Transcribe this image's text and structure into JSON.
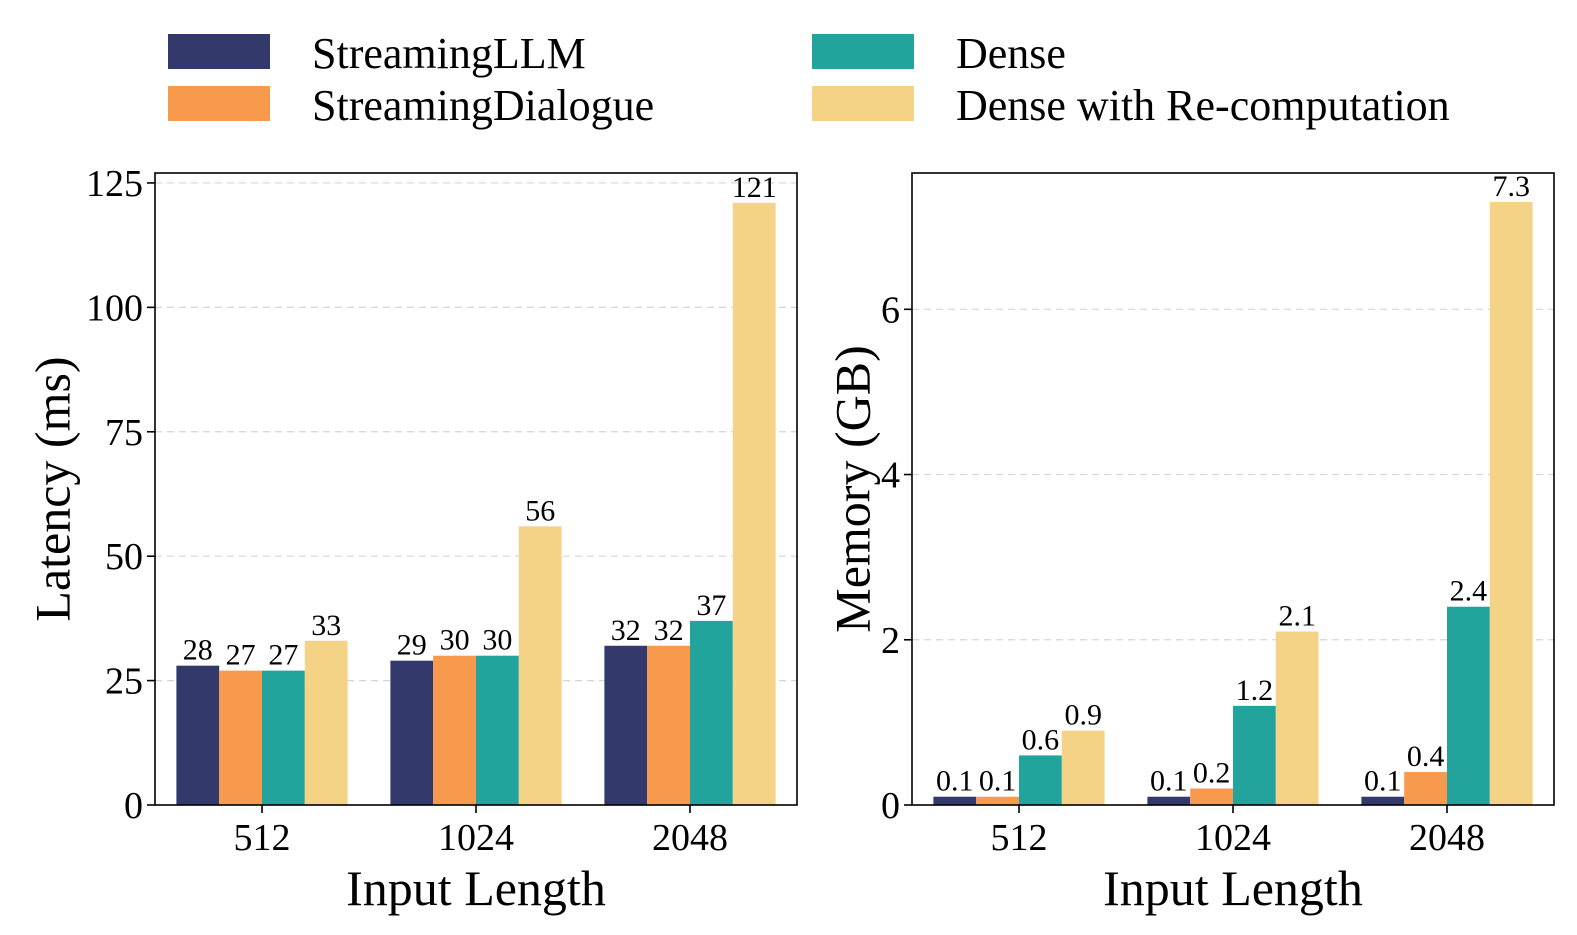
{
  "legend": [
    {
      "label": "StreamingLLM",
      "color": "#333a6b"
    },
    {
      "label": "StreamingDialogue",
      "color": "#f79a4d"
    },
    {
      "label": "Dense",
      "color": "#22a39b"
    },
    {
      "label": "Dense with Re-computation",
      "color": "#f5d386"
    }
  ],
  "chart_data": [
    {
      "type": "bar",
      "xlabel": "Input Length",
      "ylabel": "Latency (ms)",
      "categories": [
        "512",
        "1024",
        "2048"
      ],
      "ylim": [
        0,
        127
      ],
      "yticks": [
        0,
        25,
        50,
        75,
        100,
        125
      ],
      "ytick_labels": [
        "0",
        "25",
        "50",
        "75",
        "100",
        "125"
      ],
      "grid": true,
      "series": [
        {
          "name": "StreamingLLM",
          "color": "#333a6b",
          "values": [
            28,
            29,
            32
          ],
          "labels": [
            "28",
            "29",
            "32"
          ]
        },
        {
          "name": "StreamingDialogue",
          "color": "#f79a4d",
          "values": [
            27,
            30,
            32
          ],
          "labels": [
            "27",
            "30",
            "32"
          ]
        },
        {
          "name": "Dense",
          "color": "#22a39b",
          "values": [
            27,
            30,
            37
          ],
          "labels": [
            "27",
            "30",
            "37"
          ]
        },
        {
          "name": "Dense with Re-computation",
          "color": "#f5d386",
          "values": [
            33,
            56,
            121
          ],
          "labels": [
            "33",
            "56",
            "121"
          ]
        }
      ]
    },
    {
      "type": "bar",
      "xlabel": "Input Length",
      "ylabel": "Memory (GB)",
      "categories": [
        "512",
        "1024",
        "2048"
      ],
      "ylim": [
        0,
        7.65
      ],
      "yticks": [
        0,
        2,
        4,
        6
      ],
      "ytick_labels": [
        "0",
        "2",
        "4",
        "6"
      ],
      "grid": true,
      "series": [
        {
          "name": "StreamingLLM",
          "color": "#333a6b",
          "values": [
            0.1,
            0.1,
            0.1
          ],
          "labels": [
            "0.1",
            "0.1",
            "0.1"
          ]
        },
        {
          "name": "StreamingDialogue",
          "color": "#f79a4d",
          "values": [
            0.1,
            0.2,
            0.4
          ],
          "labels": [
            "0.1",
            "0.2",
            "0.4"
          ]
        },
        {
          "name": "Dense",
          "color": "#22a39b",
          "values": [
            0.6,
            1.2,
            2.4
          ],
          "labels": [
            "0.6",
            "1.2",
            "2.4"
          ]
        },
        {
          "name": "Dense with Re-computation",
          "color": "#f5d386",
          "values": [
            0.9,
            2.1,
            7.3
          ],
          "labels": [
            "0.9",
            "2.1",
            "7.3"
          ]
        }
      ]
    }
  ]
}
